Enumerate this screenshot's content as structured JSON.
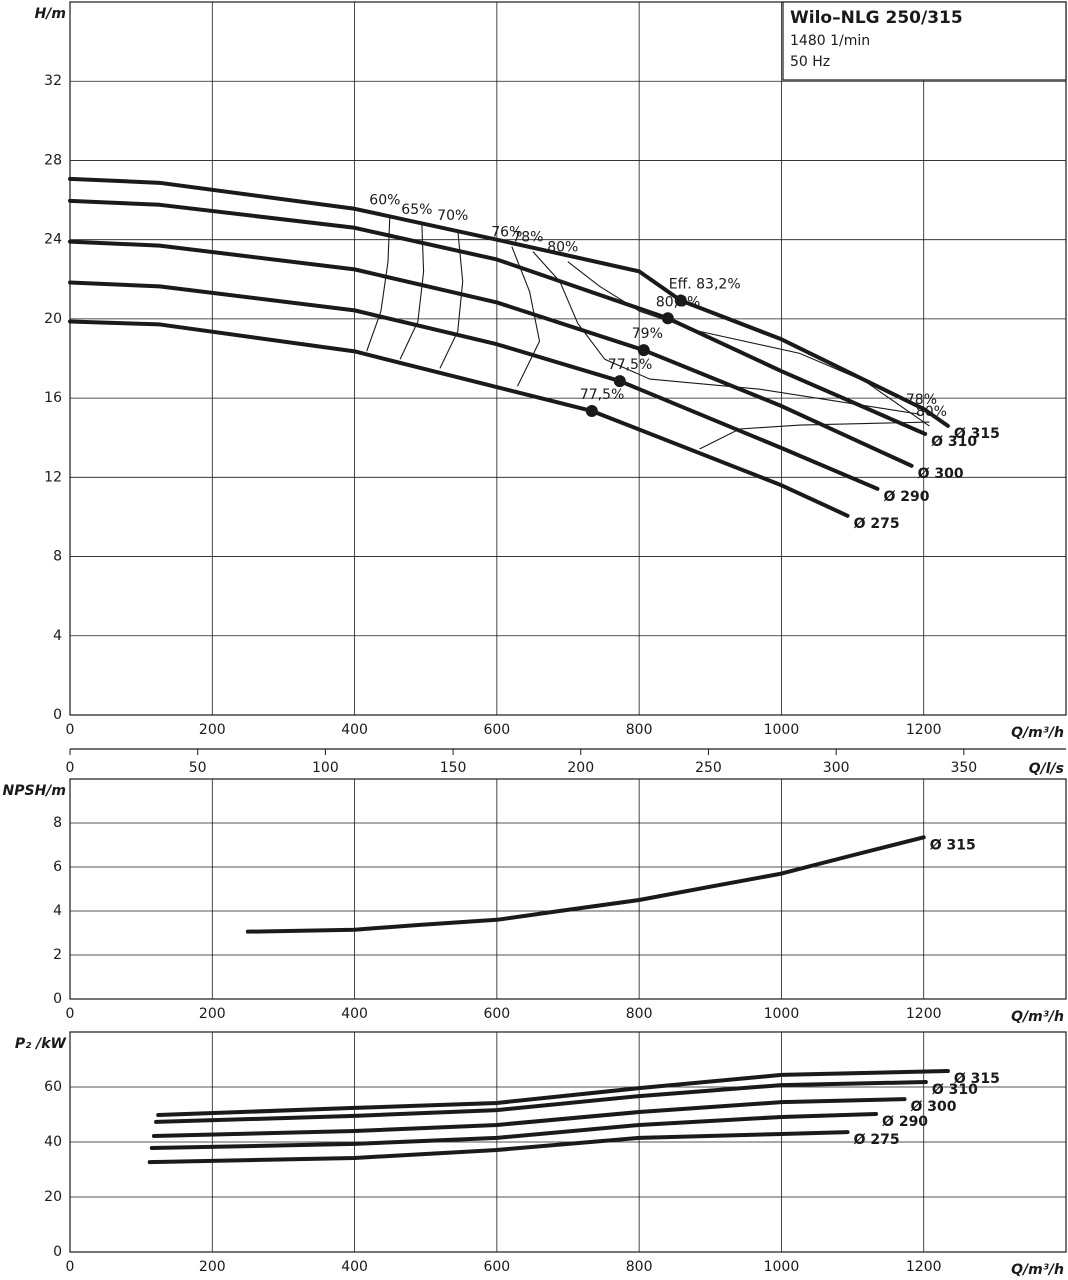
{
  "chart_data": [
    {
      "type": "line",
      "title": "Wilo–NLG 250/315",
      "subtitle_lines": [
        "1480 1/min",
        "50 Hz"
      ],
      "y_label": "H/m",
      "x_label": "Q/m³/h",
      "xlim": [
        0,
        1400
      ],
      "xticks": [
        0,
        200,
        400,
        600,
        800,
        1000,
        1200
      ],
      "ylim": [
        0,
        36
      ],
      "yticks": [
        0,
        4,
        8,
        12,
        16,
        20,
        24,
        28,
        32
      ],
      "grid": true,
      "series": [
        {
          "name": "Ø 315",
          "color": "#1a1a1a",
          "x": [
            0,
            126,
            400,
            600,
            800,
            858.5,
            1000,
            1200,
            1234
          ],
          "values": [
            27.07,
            26.87,
            25.56,
            24.0,
            22.4,
            20.93,
            18.97,
            15.45,
            14.6
          ],
          "duty_point": {
            "x": 858.5,
            "y": 20.93,
            "label": "Eff.  83,2%"
          }
        },
        {
          "name": "Ø 310",
          "color": "#1a1a1a",
          "x": [
            0,
            126,
            400,
            600,
            840.3,
            1000,
            1202
          ],
          "values": [
            25.96,
            25.76,
            24.6,
            23.0,
            20.03,
            17.36,
            14.19
          ],
          "duty_point": {
            "x": 840.3,
            "y": 20.03,
            "label": "80,6%"
          }
        },
        {
          "name": "Ø 300",
          "color": "#1a1a1a",
          "x": [
            0,
            126,
            400,
            600,
            806.5,
            1000,
            1183
          ],
          "values": [
            23.9,
            23.7,
            22.5,
            20.83,
            18.42,
            15.6,
            12.58
          ],
          "duty_point": {
            "x": 806.5,
            "y": 18.42,
            "label": "79%"
          }
        },
        {
          "name": "Ø 290",
          "color": "#1a1a1a",
          "x": [
            0,
            126,
            400,
            600,
            772.8,
            1000,
            1135
          ],
          "values": [
            21.84,
            21.64,
            20.43,
            18.72,
            16.86,
            13.48,
            11.42
          ],
          "duty_point": {
            "x": 772.8,
            "y": 16.86,
            "label": "77,5%"
          }
        },
        {
          "name": "Ø 275",
          "color": "#1a1a1a",
          "x": [
            0,
            126,
            400,
            733.5,
            1000,
            1093
          ],
          "values": [
            19.87,
            19.72,
            18.36,
            15.35,
            11.6,
            10.06
          ],
          "duty_point": {
            "x": 733.5,
            "y": 15.35,
            "label": "77,5%"
          }
        }
      ],
      "efficiency_lines": [
        {
          "name": "60%",
          "label_at": [
            "start"
          ],
          "x": [
            449.6,
            447,
            437,
            417
          ],
          "values": [
            25.26,
            22.89,
            20.38,
            18.36
          ]
        },
        {
          "name": "65%",
          "label_at": [
            "start"
          ],
          "x": [
            494.6,
            497,
            489,
            464
          ],
          "values": [
            24.8,
            22.39,
            19.87,
            17.96
          ]
        },
        {
          "name": "70%",
          "label_at": [
            "start"
          ],
          "x": [
            545,
            552,
            545,
            520
          ],
          "values": [
            24.5,
            21.89,
            19.37,
            17.5
          ]
        },
        {
          "name": "76%",
          "label_at": [
            "start"
          ],
          "x": [
            621,
            646,
            660,
            629
          ],
          "values": [
            23.65,
            21.38,
            18.87,
            16.6
          ]
        },
        {
          "name": "78%",
          "label_at": [
            "start",
            "end"
          ],
          "x": [
            650.6,
            688.5,
            713.8,
            751.7,
            815,
            969.5,
            1194
          ],
          "values": [
            23.4,
            21.89,
            19.77,
            17.96,
            16.96,
            16.45,
            15.19
          ]
        },
        {
          "name": "80%",
          "label_at": [
            "start",
            "end"
          ],
          "x": [
            699.7,
            744.7,
            800.9,
            885,
            1025.7,
            1117,
            1208
          ],
          "values": [
            22.89,
            21.64,
            20.38,
            19.37,
            18.26,
            16.86,
            14.59
          ]
        },
        {
          "x": [
            885,
            941,
            1026,
            1208
          ],
          "values": [
            13.43,
            14.44,
            14.64,
            14.79
          ]
        }
      ]
    },
    {
      "type": "line",
      "y_label": "NPSH/m",
      "x_label": "Q/m³/h",
      "x2_label": "Q/l/s",
      "xlim": [
        0,
        1400
      ],
      "xticks": [
        0,
        200,
        400,
        600,
        800,
        1000,
        1200
      ],
      "x2lim": [
        0,
        390
      ],
      "x2ticks": [
        0,
        50,
        100,
        150,
        200,
        250,
        300,
        350
      ],
      "ylim": [
        0,
        10
      ],
      "yticks": [
        0,
        2,
        4,
        6,
        8
      ],
      "grid": true,
      "series": [
        {
          "name": "Ø 315",
          "color": "#1a1a1a",
          "x": [
            250,
            400,
            492,
            600,
            688,
            800,
            899,
            1000,
            1096,
            1200
          ],
          "values": [
            3.06,
            3.15,
            3.37,
            3.6,
            4.0,
            4.5,
            5.1,
            5.7,
            6.5,
            7.35
          ]
        }
      ]
    },
    {
      "type": "line",
      "y_label": "P₂ /kW",
      "x_label": "Q/m³/h",
      "xlim": [
        0,
        1400
      ],
      "xticks": [
        0,
        200,
        400,
        600,
        800,
        1000,
        1200
      ],
      "ylim": [
        0,
        80
      ],
      "yticks": [
        0,
        20,
        40,
        60
      ],
      "grid": true,
      "series": [
        {
          "name": "Ø 315",
          "color": "#1a1a1a",
          "x": [
            124,
            400,
            600,
            800,
            1000,
            1234
          ],
          "values": [
            49.8,
            52.4,
            54.2,
            59.6,
            64.4,
            65.8
          ]
        },
        {
          "name": "Ø 310",
          "color": "#1a1a1a",
          "x": [
            121,
            400,
            600,
            800,
            1000,
            1203
          ],
          "values": [
            47.3,
            49.5,
            51.6,
            56.7,
            60.7,
            61.8
          ]
        },
        {
          "name": "Ø 300",
          "color": "#1a1a1a",
          "x": [
            118,
            400,
            600,
            800,
            1000,
            1173
          ],
          "values": [
            42.2,
            44.0,
            46.2,
            50.9,
            54.5,
            55.6
          ]
        },
        {
          "name": "Ø 290",
          "color": "#1a1a1a",
          "x": [
            115,
            400,
            600,
            800,
            1000,
            1133
          ],
          "values": [
            37.8,
            39.3,
            41.5,
            46.2,
            49.1,
            50.2
          ]
        },
        {
          "name": "Ø 275",
          "color": "#1a1a1a",
          "x": [
            112,
            400,
            600,
            800,
            1000,
            1093
          ],
          "values": [
            32.7,
            34.2,
            37.1,
            41.5,
            42.9,
            43.6
          ]
        }
      ]
    }
  ]
}
